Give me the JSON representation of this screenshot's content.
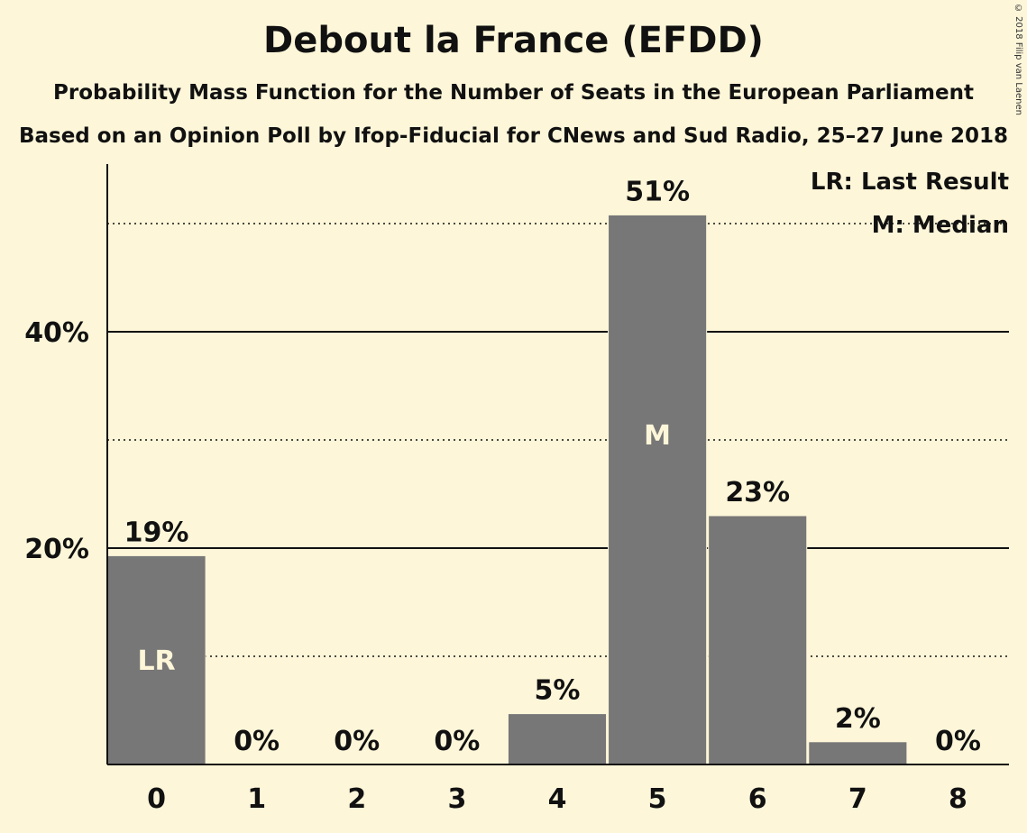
{
  "chart_data": {
    "type": "bar",
    "title": "Debout la France (EFDD)",
    "subtitle": "Probability Mass Function for the Number of Seats in the European Parliament",
    "subtitle2": "Based on an Opinion Poll by Ifop-Fiducial for CNews and Sud Radio, 25–27 June 2018",
    "categories": [
      "0",
      "1",
      "2",
      "3",
      "4",
      "5",
      "6",
      "7",
      "8"
    ],
    "values": [
      19.3,
      0,
      0,
      0,
      4.7,
      50.8,
      23.0,
      2.1,
      0
    ],
    "value_labels": [
      "19%",
      "0%",
      "0%",
      "0%",
      "5%",
      "51%",
      "23%",
      "2%",
      "0%"
    ],
    "bar_marks": {
      "0": "LR",
      "5": "M"
    },
    "y_ticks": [
      20,
      40
    ],
    "y_tick_labels": [
      "20%",
      "40%"
    ],
    "y_minor_gridlines": [
      10,
      30,
      50
    ],
    "ylim": [
      0,
      55
    ],
    "legend": [
      "LR: Last Result",
      "M: Median"
    ],
    "legend_position": "top-right",
    "bar_color": "#777777",
    "background_color": "#fdf6d9",
    "copyright": "© 2018 Filip van Laenen"
  }
}
